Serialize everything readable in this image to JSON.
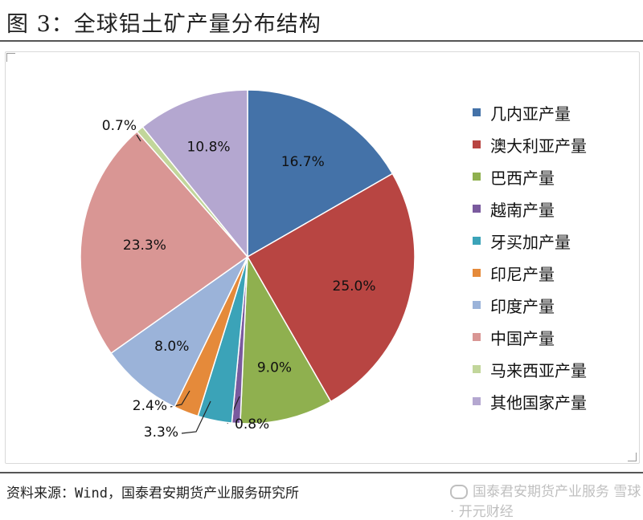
{
  "title": "图 3：全球铝土矿产量分布结构",
  "source": "资料来源：Wind，国泰君安期货产业服务研究所",
  "watermark": "国泰君安期货产业服务 雪球 · 开元财经",
  "chart_data": {
    "type": "pie",
    "title": "",
    "legend_position": "right",
    "start_angle_deg": 0,
    "direction": "clockwise",
    "labels": [
      "几内亚产量",
      "澳大利亚产量",
      "巴西产量",
      "越南产量",
      "牙买加产量",
      "印尼产量",
      "印度产量",
      "中国产量",
      "马来西亚产量",
      "其他国家产量"
    ],
    "values": [
      16.7,
      25.0,
      9.0,
      0.8,
      3.3,
      2.4,
      8.0,
      23.3,
      0.7,
      10.8
    ],
    "value_labels": [
      "16.7%",
      "25.0%",
      "9.0%",
      "0.8%",
      "3.3%",
      "2.4%",
      "8.0%",
      "23.3%",
      "0.7%",
      "10.8%"
    ],
    "colors": [
      "#4472a8",
      "#b84542",
      "#8fb04f",
      "#7a5a9e",
      "#3ba3b8",
      "#e58a3a",
      "#9bb3d9",
      "#d99694",
      "#c2d69b",
      "#b4a7d0"
    ]
  }
}
